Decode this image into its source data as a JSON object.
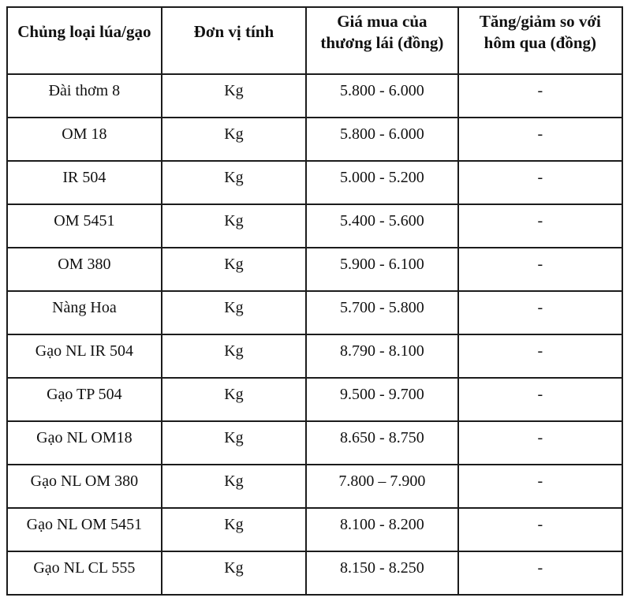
{
  "colors": {
    "border": "#1c1c1c",
    "text": "#111111",
    "background": "#ffffff"
  },
  "chart_data": {
    "type": "table",
    "columns": [
      "Chủng loại lúa/gạo",
      "Đơn vị tính",
      "Giá mua của thương lái (đồng)",
      "Tăng/giảm so với hôm qua (đồng)"
    ],
    "rows": [
      [
        "Đài thơm 8",
        "Kg",
        "5.800 - 6.000",
        "-"
      ],
      [
        "OM 18",
        "Kg",
        "5.800 - 6.000",
        "-"
      ],
      [
        "IR 504",
        "Kg",
        "5.000 - 5.200",
        "-"
      ],
      [
        "OM 5451",
        "Kg",
        "5.400 - 5.600",
        "-"
      ],
      [
        "OM 380",
        "Kg",
        "5.900 - 6.100",
        "-"
      ],
      [
        "Nàng Hoa",
        "Kg",
        "5.700 - 5.800",
        "-"
      ],
      [
        "Gạo NL IR 504",
        "Kg",
        "8.790 - 8.100",
        "-"
      ],
      [
        "Gạo TP 504",
        "Kg",
        "9.500 - 9.700",
        "-"
      ],
      [
        "Gạo NL OM18",
        "Kg",
        "8.650 - 8.750",
        "-"
      ],
      [
        "Gạo NL OM 380",
        "Kg",
        "7.800 – 7.900",
        "-"
      ],
      [
        "Gạo NL OM 5451",
        "Kg",
        "8.100 - 8.200",
        "-"
      ],
      [
        "Gạo NL CL 555",
        "Kg",
        "8.150 - 8.250",
        "-"
      ]
    ]
  }
}
